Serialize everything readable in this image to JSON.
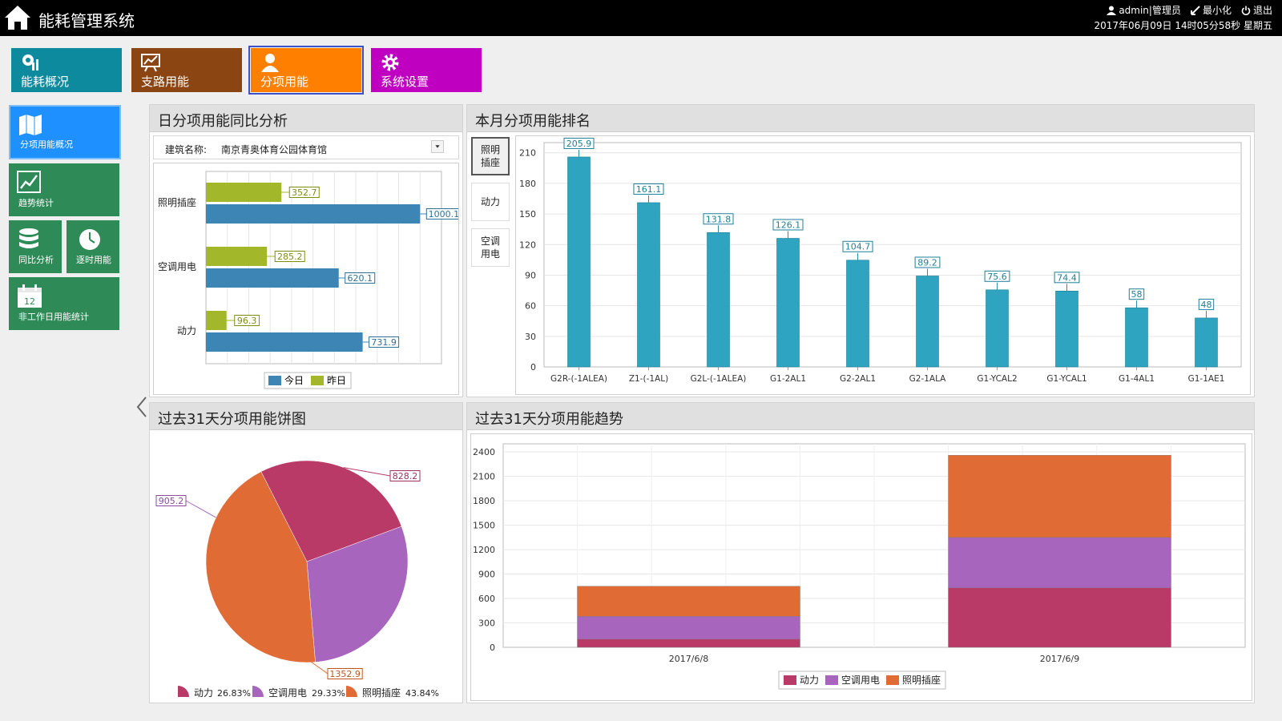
{
  "header": {
    "app_title": "能耗管理系统",
    "user": "admin|管理员",
    "minimize": "最小化",
    "logout": "退出",
    "datetime": "2017年06月09日 14时05分58秒 星期五"
  },
  "top_nav": [
    {
      "label": "能耗概况",
      "color": "#0e8a9e",
      "icon": "dashboard-icon"
    },
    {
      "label": "支路用能",
      "color": "#8b4513",
      "icon": "trend-board-icon"
    },
    {
      "label": "分项用能",
      "color": "#ff8000",
      "icon": "user-icon",
      "active": true
    },
    {
      "label": "系统设置",
      "color": "#c000c0",
      "icon": "gear-icon"
    }
  ],
  "side_nav": [
    {
      "label": "分项用能概况",
      "color": "#1e90ff",
      "icon": "map-icon"
    },
    {
      "label": "趋势统计",
      "color": "#2e8b57",
      "icon": "trend-icon"
    },
    {
      "label": "同比分析",
      "color": "#2e8b57",
      "icon": "database-icon"
    },
    {
      "label": "逐时用能",
      "color": "#2e8b57",
      "icon": "clock-icon"
    },
    {
      "label": "非工作日用能统计",
      "color": "#2e8b57",
      "icon": "calendar-icon",
      "calendar_day": "12"
    }
  ],
  "panels": {
    "daily": {
      "title": "日分项用能同比分析",
      "building_label": "建筑名称:",
      "building_value": "南京青奥体育公园体育馆"
    },
    "ranking": {
      "title": "本月分项用能排名",
      "categories": [
        "照明插座",
        "动力",
        "空调用电"
      ],
      "category_lines": [
        [
          "照明",
          "插座"
        ],
        [
          "动力"
        ],
        [
          "空调",
          "用电"
        ]
      ]
    },
    "pie": {
      "title": "过去31天分项用能饼图"
    },
    "trend": {
      "title": "过去31天分项用能趋势"
    }
  },
  "chart_data": [
    {
      "type": "bar",
      "orientation": "horizontal",
      "categories": [
        "照明插座",
        "空调用电",
        "动力"
      ],
      "series": [
        {
          "name": "今日",
          "values": [
            1000.1,
            620.1,
            731.9
          ],
          "color": "#3d85b4"
        },
        {
          "name": "昨日",
          "values": [
            352.7,
            285.2,
            96.3
          ],
          "color": "#a2b82a"
        }
      ],
      "xlim": [
        0,
        1100
      ],
      "grid": true,
      "legend": "bottom"
    },
    {
      "type": "bar",
      "categories": [
        "G2R-(-1ALEA)",
        "Z1-(-1AL)",
        "G2L-(-1ALEA)",
        "G1-2AL1",
        "G2-2AL1",
        "G2-1ALA",
        "G1-YCAL2",
        "G1-YCAL1",
        "G1-4AL1",
        "G1-1AE1"
      ],
      "values": [
        205.9,
        161.1,
        131.8,
        126.1,
        104.7,
        89.2,
        75.6,
        74.4,
        58,
        48
      ],
      "ylim": [
        0,
        220
      ],
      "yticks": [
        0,
        30,
        60,
        90,
        120,
        150,
        180,
        210
      ],
      "color": "#2ea4c0",
      "grid": true
    },
    {
      "type": "pie",
      "labels": [
        "动力",
        "空调用电",
        "照明插座"
      ],
      "values": [
        828.2,
        905.2,
        1352.9
      ],
      "percents": [
        "26.83%",
        "29.33%",
        "43.84%"
      ],
      "colors": [
        "#b93a66",
        "#a865bd",
        "#e06b34"
      ],
      "legend": "bottom"
    },
    {
      "type": "bar",
      "stacked": true,
      "categories": [
        "2017/6/8",
        "2017/6/9"
      ],
      "series": [
        {
          "name": "动力",
          "values": [
            100,
            730
          ],
          "color": "#b93a66"
        },
        {
          "name": "空调用电",
          "values": [
            280,
            620
          ],
          "color": "#a865bd"
        },
        {
          "name": "照明插座",
          "values": [
            370,
            1010
          ],
          "color": "#e06b34"
        }
      ],
      "ylim": [
        0,
        2500
      ],
      "yticks": [
        0,
        300,
        600,
        900,
        1200,
        1500,
        1800,
        2100,
        2400
      ],
      "grid": true,
      "legend": "bottom"
    }
  ]
}
